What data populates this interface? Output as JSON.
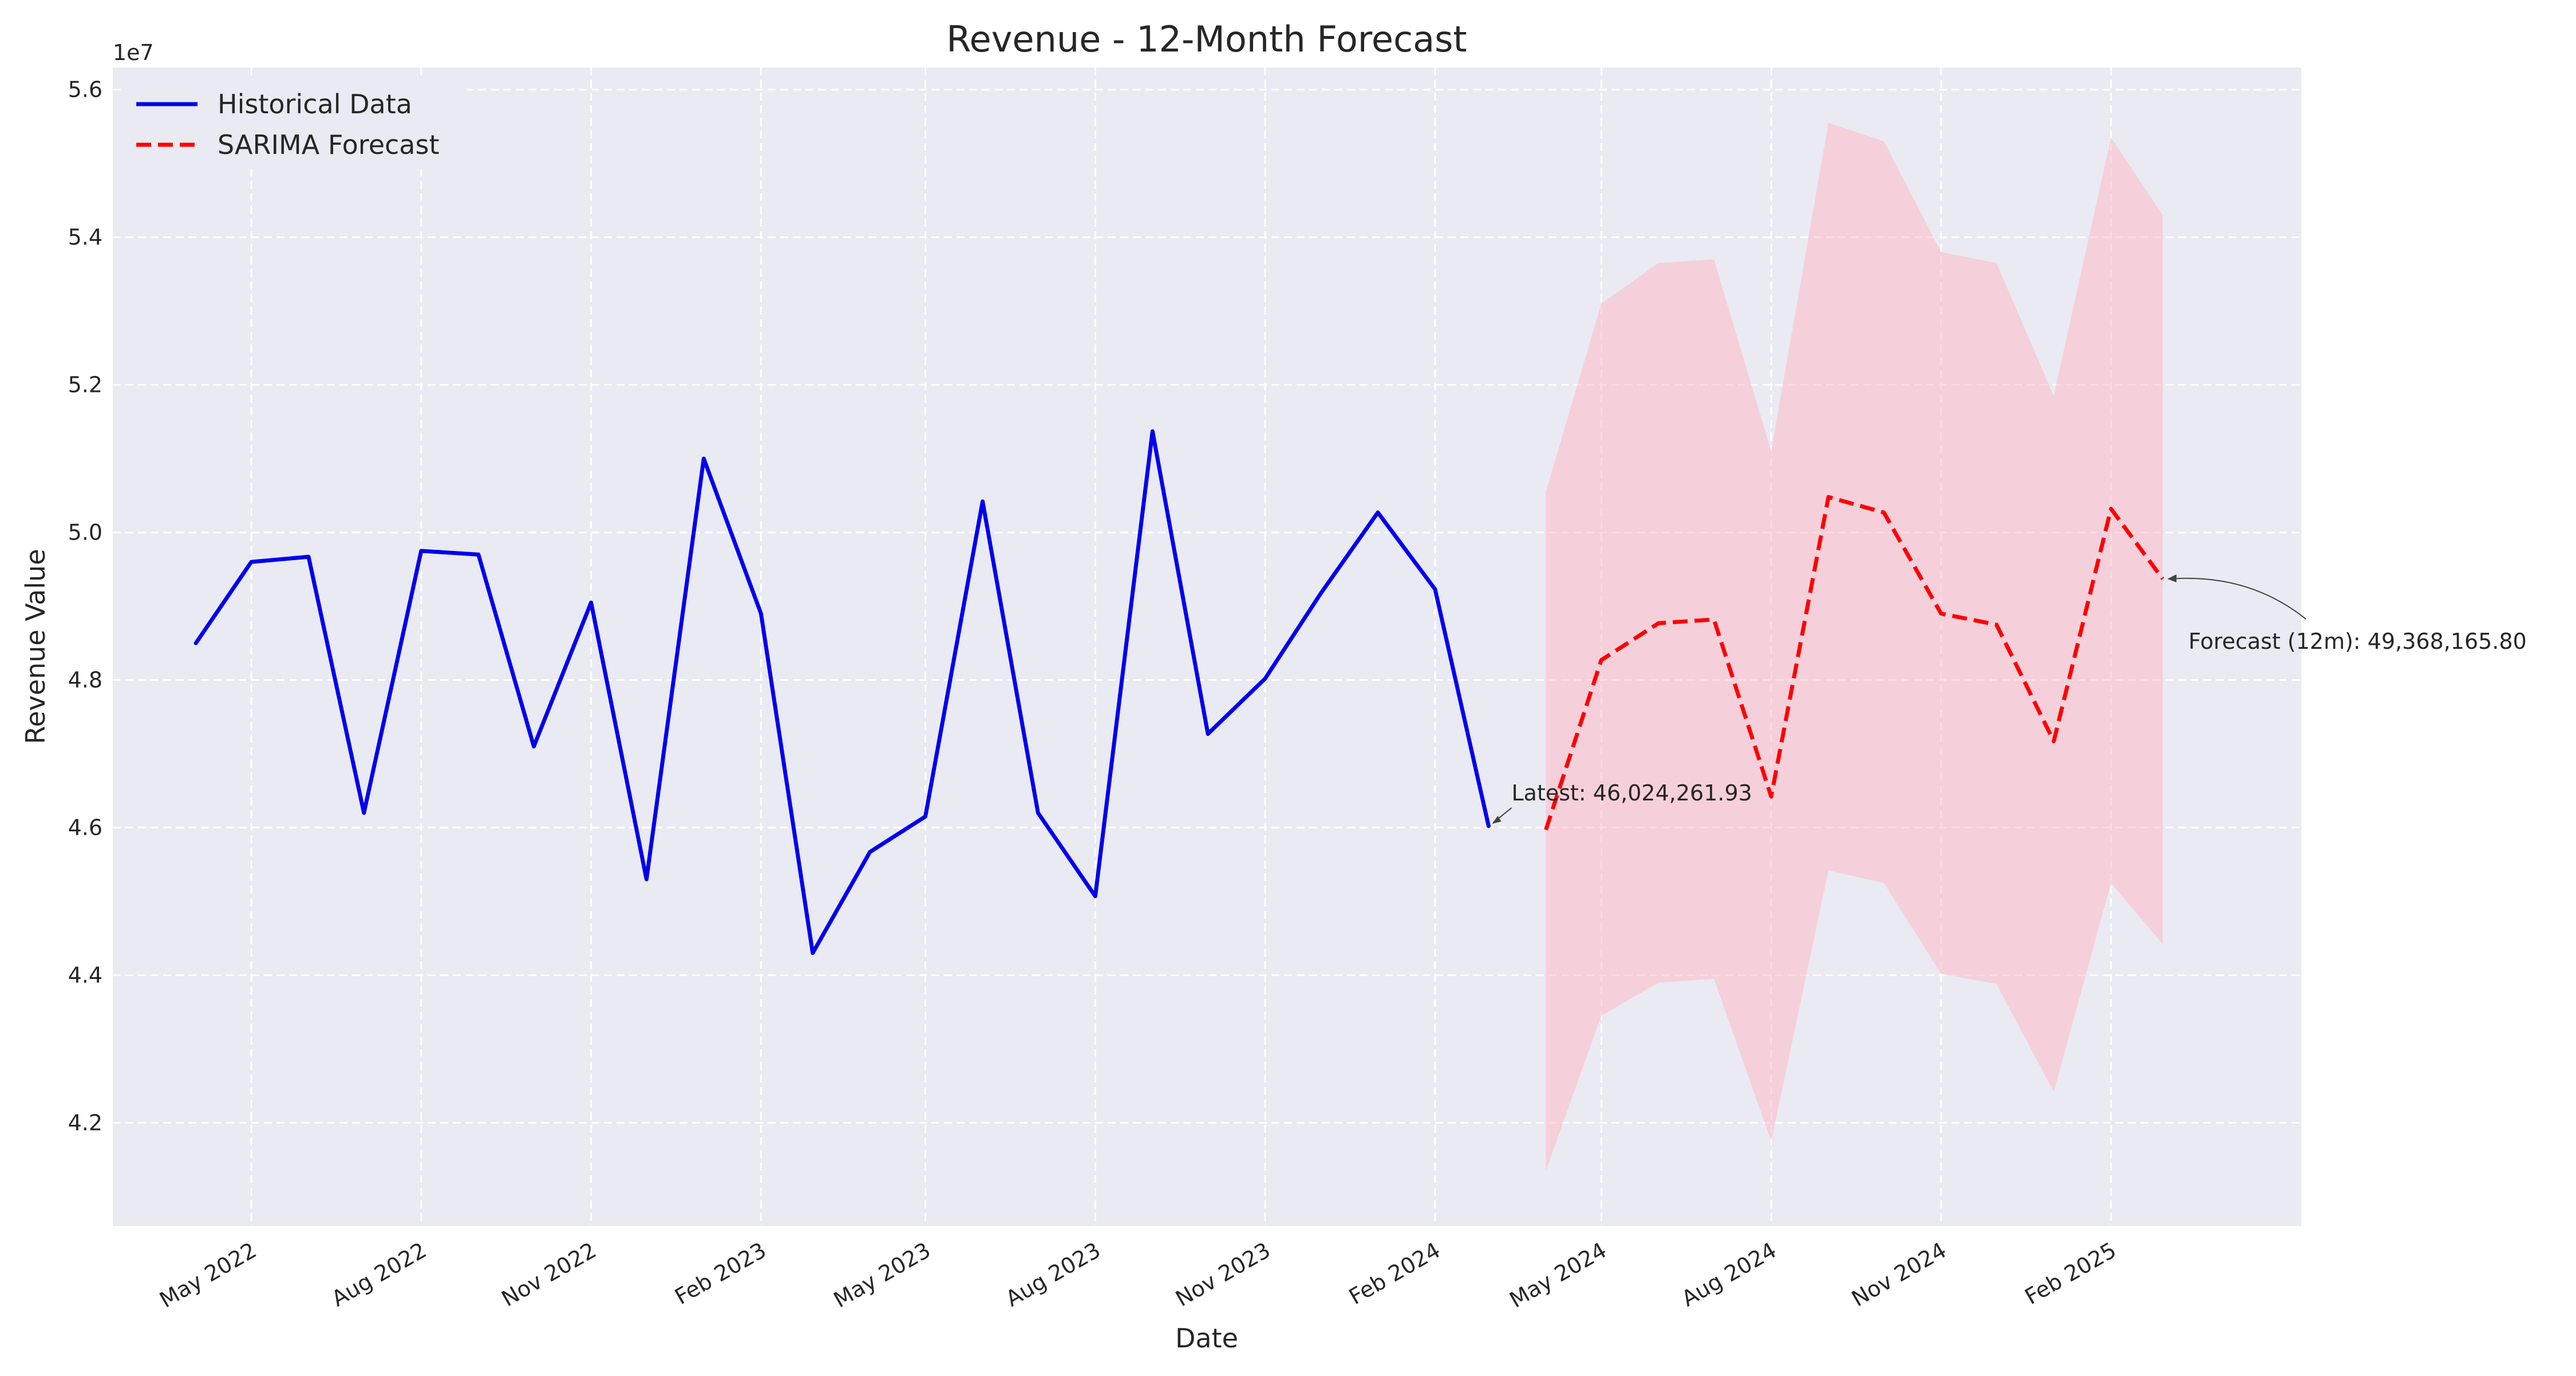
{
  "chart_data": {
    "type": "line",
    "title": "Revenue - 12-Month Forecast",
    "xlabel": "Date",
    "ylabel": "Revenue Value",
    "y_multiplier_label": "1e7",
    "x_range": [
      "2022-02-15",
      "2025-05-15"
    ],
    "ylim": [
      40.6,
      56.3
    ],
    "y_ticks": [
      4.2,
      4.4,
      4.6,
      4.8,
      5.0,
      5.2,
      5.4,
      5.6
    ],
    "x_ticks": [
      {
        "date": "2022-05",
        "label": "May 2022"
      },
      {
        "date": "2022-08",
        "label": "Aug 2022"
      },
      {
        "date": "2022-11",
        "label": "Nov 2022"
      },
      {
        "date": "2023-02",
        "label": "Feb 2023"
      },
      {
        "date": "2023-05",
        "label": "May 2023"
      },
      {
        "date": "2023-08",
        "label": "Aug 2023"
      },
      {
        "date": "2023-11",
        "label": "Nov 2023"
      },
      {
        "date": "2024-02",
        "label": "Feb 2024"
      },
      {
        "date": "2024-05",
        "label": "May 2024"
      },
      {
        "date": "2024-08",
        "label": "Aug 2024"
      },
      {
        "date": "2024-11",
        "label": "Nov 2024"
      },
      {
        "date": "2025-02",
        "label": "Feb 2025"
      }
    ],
    "grid": true,
    "legend_position": "top-left",
    "series": [
      {
        "name": "Historical Data",
        "color": "#0000ee",
        "style": "solid",
        "x": [
          "2022-04",
          "2022-05",
          "2022-06",
          "2022-07",
          "2022-08",
          "2022-09",
          "2022-10",
          "2022-11",
          "2022-12",
          "2023-01",
          "2023-02",
          "2023-03",
          "2023-04",
          "2023-05",
          "2023-06",
          "2023-07",
          "2023-08",
          "2023-09",
          "2023-10",
          "2023-11",
          "2023-12",
          "2024-01",
          "2024-02",
          "2024-03"
        ],
        "values": [
          48.5,
          49.6,
          49.67,
          46.2,
          49.75,
          49.7,
          47.1,
          49.05,
          45.3,
          51.0,
          48.9,
          44.3,
          45.67,
          46.15,
          50.42,
          46.2,
          45.07,
          51.37,
          47.27,
          48.02,
          49.17,
          50.27,
          49.23,
          46.02
        ]
      },
      {
        "name": "SARIMA Forecast",
        "color": "#ff0000",
        "style": "dashed",
        "x": [
          "2024-04",
          "2024-05",
          "2024-06",
          "2024-07",
          "2024-08",
          "2024-09",
          "2024-10",
          "2024-11",
          "2024-12",
          "2025-01",
          "2025-02",
          "2025-03"
        ],
        "values": [
          45.97,
          48.27,
          48.77,
          48.82,
          46.42,
          50.48,
          50.27,
          48.9,
          48.75,
          47.17,
          50.32,
          49.37
        ]
      }
    ],
    "confidence_band": {
      "color": "#ffb6c1",
      "x": [
        "2024-04",
        "2024-05",
        "2024-06",
        "2024-07",
        "2024-08",
        "2024-09",
        "2024-10",
        "2024-11",
        "2024-12",
        "2025-01",
        "2025-02",
        "2025-03"
      ],
      "upper": [
        50.55,
        53.1,
        53.65,
        53.7,
        51.1,
        55.55,
        55.3,
        53.8,
        53.65,
        51.85,
        55.35,
        54.3
      ],
      "lower": [
        41.35,
        43.45,
        43.9,
        43.95,
        41.75,
        45.42,
        45.25,
        44.02,
        43.88,
        42.42,
        45.25,
        44.42
      ]
    },
    "annotations": [
      {
        "text": "Latest: 46,024,261.93",
        "point_x": "2024-03",
        "point_y": 46.02
      },
      {
        "text": "Forecast (12m): 49,368,165.80",
        "point_x": "2025-03",
        "point_y": 49.37
      }
    ]
  }
}
